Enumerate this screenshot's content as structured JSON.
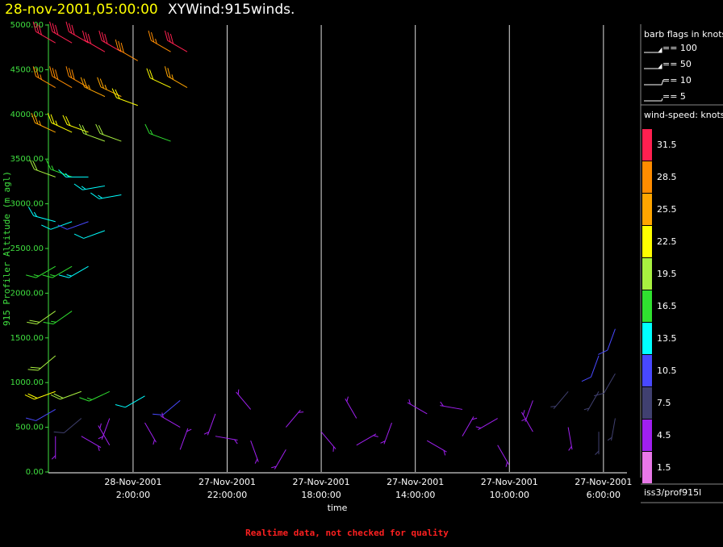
{
  "chart_data": {
    "type": "barb",
    "title": "28-nov-2001,05:00:00",
    "subtitle": "XYWind:915winds.",
    "y_label": "915 Profiler Altitude (m agl)",
    "x_label": "time",
    "footer": "Realtime data, not checked for quality",
    "source": "iss3/prof915l",
    "barb_legend_title": "barb flags in knots",
    "barb_legend": [
      "== 100",
      "== 50",
      "== 10",
      "== 5"
    ],
    "color_legend_title": "wind-speed: knots",
    "ylim": [
      0,
      5000
    ],
    "yticks": [
      {
        "value": 0,
        "label": "0.00"
      },
      {
        "value": 500,
        "label": "500.00"
      },
      {
        "value": 1000,
        "label": "1000.00"
      },
      {
        "value": 1500,
        "label": "1500.00"
      },
      {
        "value": 2000,
        "label": "2000.00"
      },
      {
        "value": 2500,
        "label": "2500.00"
      },
      {
        "value": 3000,
        "label": "3000.00"
      },
      {
        "value": 3500,
        "label": "3500.00"
      },
      {
        "value": 4000,
        "label": "4000.00"
      },
      {
        "value": 4500,
        "label": "4500.00"
      },
      {
        "value": 5000,
        "label": "5000.00"
      }
    ],
    "xlim": [
      29.6,
      5
    ],
    "xticks": [
      {
        "value": 26,
        "date": "28-Nov-2001",
        "label": "2:00:00"
      },
      {
        "value": 22,
        "date": "27-Nov-2001",
        "label": "22:00:00"
      },
      {
        "value": 18,
        "date": "27-Nov-2001",
        "label": "18:00:00"
      },
      {
        "value": 14,
        "date": "27-Nov-2001",
        "label": "14:00:00"
      },
      {
        "value": 10,
        "date": "27-Nov-2001",
        "label": "10:00:00"
      },
      {
        "value": 6,
        "date": "27-Nov-2001",
        "label": "6:00:00"
      }
    ],
    "speed_levels": [
      31.5,
      28.5,
      25.5,
      22.5,
      19.5,
      16.5,
      13.5,
      10.5,
      7.5,
      4.5,
      1.5
    ],
    "speed_colors": [
      "#ff2050",
      "#ff8c00",
      "#ffa500",
      "#ffff00",
      "#a8f040",
      "#30e030",
      "#00ffff",
      "#4848ff",
      "#404070",
      "#a020f0",
      "#e878e8"
    ],
    "barbs": [
      {
        "x": 29.3,
        "y": 4800,
        "speed": 32,
        "dir": 300
      },
      {
        "x": 29.3,
        "y": 4300,
        "speed": 27,
        "dir": 300
      },
      {
        "x": 29.3,
        "y": 3800,
        "speed": 24,
        "dir": 295
      },
      {
        "x": 29.3,
        "y": 3300,
        "speed": 18,
        "dir": 290
      },
      {
        "x": 29.3,
        "y": 2800,
        "speed": 14,
        "dir": 285
      },
      {
        "x": 29.3,
        "y": 2300,
        "speed": 17,
        "dir": 240
      },
      {
        "x": 29.3,
        "y": 1800,
        "speed": 18,
        "dir": 235
      },
      {
        "x": 29.3,
        "y": 1300,
        "speed": 19,
        "dir": 230
      },
      {
        "x": 28.6,
        "y": 4800,
        "speed": 31,
        "dir": 300
      },
      {
        "x": 28.6,
        "y": 4300,
        "speed": 28,
        "dir": 300
      },
      {
        "x": 28.6,
        "y": 3800,
        "speed": 23,
        "dir": 295
      },
      {
        "x": 28.6,
        "y": 3300,
        "speed": 15,
        "dir": 290
      },
      {
        "x": 28.6,
        "y": 2800,
        "speed": 12,
        "dir": 250
      },
      {
        "x": 28.6,
        "y": 2300,
        "speed": 15,
        "dir": 240
      },
      {
        "x": 28.6,
        "y": 1800,
        "speed": 17,
        "dir": 235
      },
      {
        "x": 27.9,
        "y": 4800,
        "speed": 32,
        "dir": 300
      },
      {
        "x": 27.9,
        "y": 4300,
        "speed": 28,
        "dir": 300
      },
      {
        "x": 27.9,
        "y": 3800,
        "speed": 21,
        "dir": 290
      },
      {
        "x": 27.9,
        "y": 3300,
        "speed": 13,
        "dir": 270
      },
      {
        "x": 27.9,
        "y": 2800,
        "speed": 11,
        "dir": 250
      },
      {
        "x": 27.9,
        "y": 2300,
        "speed": 14,
        "dir": 240
      },
      {
        "x": 27.2,
        "y": 4700,
        "speed": 30,
        "dir": 300
      },
      {
        "x": 27.2,
        "y": 4200,
        "speed": 25,
        "dir": 295
      },
      {
        "x": 27.2,
        "y": 3700,
        "speed": 19,
        "dir": 290
      },
      {
        "x": 27.2,
        "y": 3200,
        "speed": 13,
        "dir": 260
      },
      {
        "x": 27.2,
        "y": 2700,
        "speed": 12,
        "dir": 250
      },
      {
        "x": 26.5,
        "y": 4700,
        "speed": 30,
        "dir": 300
      },
      {
        "x": 26.5,
        "y": 4200,
        "speed": 24,
        "dir": 295
      },
      {
        "x": 26.5,
        "y": 3700,
        "speed": 18,
        "dir": 290
      },
      {
        "x": 26.5,
        "y": 3100,
        "speed": 14,
        "dir": 260
      },
      {
        "x": 25.8,
        "y": 4600,
        "speed": 28,
        "dir": 300
      },
      {
        "x": 25.8,
        "y": 4100,
        "speed": 22,
        "dir": 290
      },
      {
        "x": 24.4,
        "y": 4700,
        "speed": 27,
        "dir": 300
      },
      {
        "x": 24.4,
        "y": 4300,
        "speed": 22,
        "dir": 295
      },
      {
        "x": 24.4,
        "y": 3700,
        "speed": 16,
        "dir": 290
      },
      {
        "x": 23.7,
        "y": 4700,
        "speed": 30,
        "dir": 300
      },
      {
        "x": 23.7,
        "y": 4300,
        "speed": 25,
        "dir": 300
      },
      {
        "x": 29.3,
        "y": 900,
        "speed": 22,
        "dir": 250
      },
      {
        "x": 29.3,
        "y": 700,
        "speed": 11,
        "dir": 240
      },
      {
        "x": 29.3,
        "y": 400,
        "speed": 4,
        "dir": 180
      },
      {
        "x": 28.2,
        "y": 900,
        "speed": 20,
        "dir": 250
      },
      {
        "x": 28.2,
        "y": 600,
        "speed": 8,
        "dir": 230
      },
      {
        "x": 28.2,
        "y": 400,
        "speed": 3,
        "dir": 120
      },
      {
        "x": 27.0,
        "y": 900,
        "speed": 16,
        "dir": 245
      },
      {
        "x": 27.0,
        "y": 600,
        "speed": 5,
        "dir": 200
      },
      {
        "x": 27.0,
        "y": 300,
        "speed": 3,
        "dir": 330
      },
      {
        "x": 25.5,
        "y": 850,
        "speed": 12,
        "dir": 240
      },
      {
        "x": 25.5,
        "y": 550,
        "speed": 4,
        "dir": 150
      },
      {
        "x": 24.0,
        "y": 800,
        "speed": 9,
        "dir": 230
      },
      {
        "x": 24.0,
        "y": 500,
        "speed": 4,
        "dir": 300
      },
      {
        "x": 24.0,
        "y": 250,
        "speed": 3,
        "dir": 20
      },
      {
        "x": 22.5,
        "y": 650,
        "speed": 5,
        "dir": 200
      },
      {
        "x": 22.5,
        "y": 400,
        "speed": 3,
        "dir": 100
      },
      {
        "x": 21.0,
        "y": 700,
        "speed": 4,
        "dir": 320
      },
      {
        "x": 21.0,
        "y": 350,
        "speed": 3,
        "dir": 160
      },
      {
        "x": 19.5,
        "y": 500,
        "speed": 3,
        "dir": 40
      },
      {
        "x": 19.5,
        "y": 250,
        "speed": 4,
        "dir": 210
      },
      {
        "x": 18.0,
        "y": 450,
        "speed": 3,
        "dir": 140
      },
      {
        "x": 16.5,
        "y": 600,
        "speed": 4,
        "dir": 330
      },
      {
        "x": 16.5,
        "y": 300,
        "speed": 3,
        "dir": 60
      },
      {
        "x": 15.0,
        "y": 550,
        "speed": 3,
        "dir": 200
      },
      {
        "x": 13.5,
        "y": 650,
        "speed": 5,
        "dir": 300
      },
      {
        "x": 13.5,
        "y": 350,
        "speed": 4,
        "dir": 120
      },
      {
        "x": 12.0,
        "y": 700,
        "speed": 5,
        "dir": 280
      },
      {
        "x": 12.0,
        "y": 400,
        "speed": 4,
        "dir": 30
      },
      {
        "x": 10.5,
        "y": 600,
        "speed": 4,
        "dir": 240
      },
      {
        "x": 10.5,
        "y": 300,
        "speed": 5,
        "dir": 150
      },
      {
        "x": 9.0,
        "y": 800,
        "speed": 5,
        "dir": 200
      },
      {
        "x": 9.0,
        "y": 450,
        "speed": 4,
        "dir": 330
      },
      {
        "x": 7.5,
        "y": 900,
        "speed": 7,
        "dir": 220
      },
      {
        "x": 7.5,
        "y": 500,
        "speed": 5,
        "dir": 170
      },
      {
        "x": 6.2,
        "y": 1300,
        "speed": 9,
        "dir": 200
      },
      {
        "x": 6.2,
        "y": 900,
        "speed": 7,
        "dir": 210
      },
      {
        "x": 6.2,
        "y": 450,
        "speed": 6,
        "dir": 180
      },
      {
        "x": 5.5,
        "y": 1600,
        "speed": 11,
        "dir": 200
      },
      {
        "x": 5.5,
        "y": 1100,
        "speed": 8,
        "dir": 210
      },
      {
        "x": 5.5,
        "y": 600,
        "speed": 6,
        "dir": 190
      }
    ]
  }
}
